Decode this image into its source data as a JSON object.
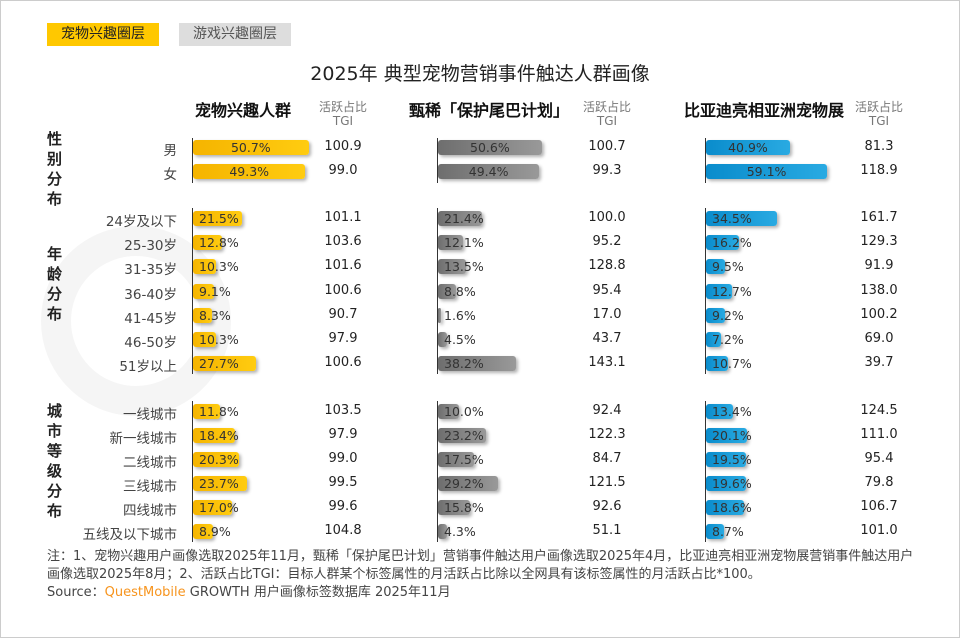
{
  "tabs": [
    "宠物兴趣圈层",
    "游戏兴趣圈层"
  ],
  "colors": {
    "group1": "#ffc000",
    "group2": "#8c8c8c",
    "group3": "#1b9ad6",
    "accent": "#f7941d"
  },
  "watermark": "QUEST MOBILE",
  "chart_data": {
    "type": "bar",
    "title": "2025年 典型宠物营销事件触达人群画像",
    "column_header": "活跃占比",
    "tgi_header": "TGI",
    "sections": [
      {
        "label": "性别分布",
        "categories": [
          "男",
          "女"
        ]
      },
      {
        "label": "年龄分布",
        "categories": [
          "24岁及以下",
          "25-30岁",
          "31-35岁",
          "36-40岁",
          "41-45岁",
          "46-50岁",
          "51岁以上"
        ]
      },
      {
        "label": "城市等级分布",
        "categories": [
          "一线城市",
          "新一线城市",
          "二线城市",
          "三线城市",
          "四线城市",
          "五线及以下城市"
        ]
      }
    ],
    "series": [
      {
        "name": "宠物兴趣人群",
        "values": [
          50.7,
          49.3,
          21.5,
          12.8,
          10.3,
          9.1,
          8.3,
          10.3,
          27.7,
          11.8,
          18.4,
          20.3,
          23.7,
          17.0,
          8.9
        ],
        "tgi": [
          "100.9",
          "99.0",
          "101.1",
          "103.6",
          "101.6",
          "100.6",
          "90.7",
          "97.9",
          "100.6",
          "103.5",
          "97.9",
          "99.0",
          "99.5",
          "99.6",
          "104.8"
        ]
      },
      {
        "name": "甄稀「保护尾巴计划」",
        "values": [
          50.6,
          49.4,
          21.4,
          12.1,
          13.5,
          8.8,
          1.6,
          4.5,
          38.2,
          10.0,
          23.2,
          17.5,
          29.2,
          15.8,
          4.3
        ],
        "tgi": [
          "100.7",
          "99.3",
          "100.0",
          "95.2",
          "128.8",
          "95.4",
          "17.0",
          "43.7",
          "143.1",
          "92.4",
          "122.3",
          "84.7",
          "121.5",
          "92.6",
          "51.1"
        ]
      },
      {
        "name": "比亚迪亮相亚洲宠物展",
        "values": [
          40.9,
          59.1,
          34.5,
          16.2,
          9.5,
          12.7,
          9.2,
          7.2,
          10.7,
          13.4,
          20.1,
          19.5,
          19.6,
          18.6,
          8.7
        ],
        "tgi": [
          "81.3",
          "118.9",
          "161.7",
          "129.3",
          "91.9",
          "138.0",
          "100.2",
          "69.0",
          "39.7",
          "124.5",
          "111.0",
          "95.4",
          "79.8",
          "106.7",
          "101.0"
        ]
      }
    ]
  },
  "note": "注：1、宠物兴趣用户画像选取2025年11月，甄稀「保护尾巴计划」营销事件触达用户画像选取2025年4月，比亚迪亮相亚洲宠物展营销事件触达用户画像选取2025年8月；2、活跃占比TGI：目标人群某个标签属性的月活跃占比除以全网具有该标签属性的月活跃占比*100。",
  "source": {
    "prefix": "Source：",
    "brand": "QuestMobile",
    "suffix": " GROWTH 用户画像标签数据库 2025年11月"
  }
}
